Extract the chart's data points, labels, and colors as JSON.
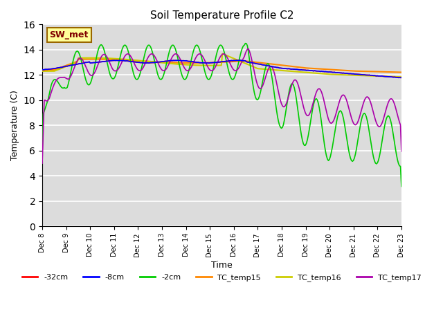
{
  "title": "Soil Temperature Profile C2",
  "xlabel": "Time",
  "ylabel": "Temperature (C)",
  "ylim": [
    0,
    16
  ],
  "yticks": [
    0,
    2,
    4,
    6,
    8,
    10,
    12,
    14,
    16
  ],
  "x_labels": [
    "Dec 8",
    "Dec 9",
    "Dec 10",
    "Dec 11",
    "Dec 12",
    "Dec 13",
    "Dec 14",
    "Dec 15",
    "Dec 16",
    "Dec 17",
    "Dec 18",
    "Dec 19",
    "Dec 20",
    "Dec 21",
    "Dec 22",
    "Dec 23"
  ],
  "annotation_text": "SW_met",
  "annotation_bg": "#ffff99",
  "annotation_border": "#996600",
  "annotation_text_color": "#800000",
  "bg_color": "#dcdcdc",
  "colors": {
    "neg32cm": "#ff0000",
    "neg8cm": "#0000ff",
    "neg2cm": "#00cc00",
    "tc15": "#ff8800",
    "tc16": "#cccc00",
    "tc17": "#aa00aa"
  },
  "legend_labels": [
    "-32cm",
    "-8cm",
    "-2cm",
    "TC_temp15",
    "TC_temp16",
    "TC_temp17"
  ]
}
